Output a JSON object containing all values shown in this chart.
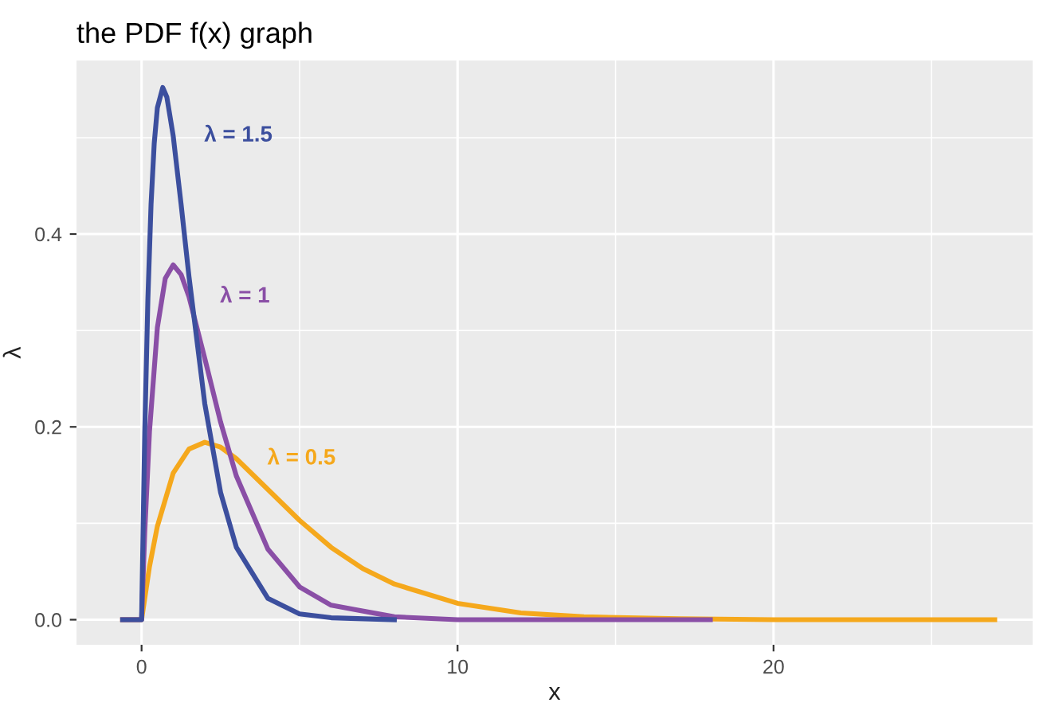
{
  "chart_data": {
    "type": "line",
    "title": "the PDF f(x) graph",
    "xlabel": "x",
    "ylabel": "λ",
    "series": [
      {
        "name": "λ = 0.5",
        "color": "#f5a81c",
        "x": [
          -0.6,
          0,
          0.25,
          0.5,
          1,
          1.5,
          2,
          2.5,
          3,
          4,
          5,
          6,
          7,
          8,
          10,
          12,
          14,
          17,
          20,
          27
        ],
        "values": [
          0,
          0,
          0.055,
          0.097,
          0.152,
          0.177,
          0.184,
          0.179,
          0.167,
          0.135,
          0.103,
          0.075,
          0.053,
          0.037,
          0.017,
          0.007,
          0.003,
          0.001,
          0,
          0
        ]
      },
      {
        "name": "λ = 1",
        "color": "#8a4fa6",
        "x": [
          -0.6,
          0,
          0.1,
          0.25,
          0.5,
          0.75,
          1,
          1.25,
          1.5,
          2,
          2.5,
          3,
          4,
          5,
          6,
          8,
          10,
          18
        ],
        "values": [
          0,
          0,
          0.09,
          0.195,
          0.303,
          0.354,
          0.368,
          0.358,
          0.335,
          0.271,
          0.205,
          0.149,
          0.073,
          0.034,
          0.015,
          0.003,
          0,
          0
        ]
      },
      {
        "name": "λ = 1.5",
        "color": "#3c4f9e",
        "x": [
          -0.6,
          0,
          0.1,
          0.2,
          0.3,
          0.4,
          0.5,
          0.67,
          0.8,
          1,
          1.25,
          1.5,
          2,
          2.5,
          3,
          4,
          5,
          6,
          8
        ],
        "values": [
          0,
          0,
          0.194,
          0.333,
          0.431,
          0.494,
          0.531,
          0.552,
          0.542,
          0.502,
          0.431,
          0.356,
          0.224,
          0.132,
          0.075,
          0.022,
          0.006,
          0.002,
          0
        ]
      }
    ],
    "xlim": [
      -2.06,
      28.2
    ],
    "ylim": [
      -0.026,
      0.58
    ],
    "xticks": [
      0,
      {
        "value": 5,
        "label": null
      },
      10,
      {
        "value": 15,
        "label": null
      },
      20,
      {
        "value": 25,
        "label": null
      }
    ],
    "yticks": [
      {
        "value": 0,
        "label": "0.0"
      },
      {
        "value": 0.1,
        "label": null
      },
      {
        "value": 0.2,
        "label": "0.2"
      },
      {
        "value": 0.3,
        "label": null
      },
      {
        "value": 0.4,
        "label": "0.4"
      },
      {
        "value": 0.5,
        "label": null
      }
    ],
    "grid": true,
    "marker": "none",
    "line_style": "solid"
  }
}
